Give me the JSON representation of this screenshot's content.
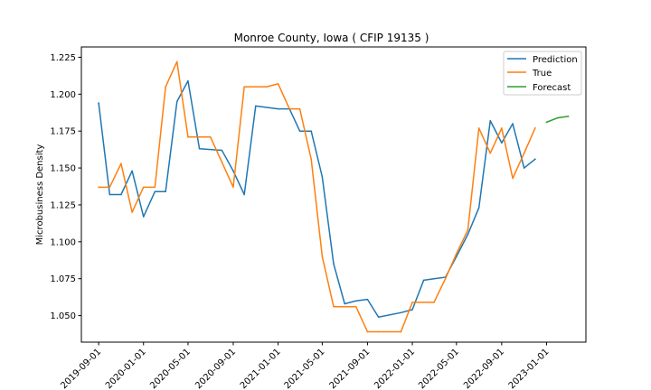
{
  "chart_data": {
    "type": "line",
    "title": "Monroe County, Iowa ( CFIP 19135 )",
    "xlabel": "",
    "ylabel": "Microbusiness Density",
    "xlim": [
      "2019-07-16",
      "2023-04-18"
    ],
    "ylim": [
      1.032,
      1.232
    ],
    "yticks": [
      1.05,
      1.075,
      1.1,
      1.125,
      1.15,
      1.175,
      1.2,
      1.225
    ],
    "ytick_labels": [
      "1.050",
      "1.075",
      "1.100",
      "1.125",
      "1.150",
      "1.175",
      "1.200",
      "1.225"
    ],
    "xticks": [
      "2019-09-01",
      "2020-01-01",
      "2020-05-01",
      "2020-09-01",
      "2021-01-01",
      "2021-05-01",
      "2021-09-01",
      "2022-01-01",
      "2022-05-01",
      "2022-09-01",
      "2023-01-01"
    ],
    "xtick_labels": [
      "2019-09-01",
      "2020-01-01",
      "2020-05-01",
      "2020-09-01",
      "2021-01-01",
      "2021-05-01",
      "2021-09-01",
      "2022-01-01",
      "2022-05-01",
      "2022-09-01",
      "2023-01-01"
    ],
    "grid": false,
    "legend_position": "top-right",
    "series": [
      {
        "name": "Prediction",
        "color": "#1f77b4",
        "x": [
          "2019-09-01",
          "2019-10-01",
          "2019-11-01",
          "2019-12-01",
          "2020-01-01",
          "2020-02-01",
          "2020-03-01",
          "2020-04-01",
          "2020-05-01",
          "2020-06-01",
          "2020-08-01",
          "2020-09-01",
          "2020-10-01",
          "2020-11-01",
          "2021-01-01",
          "2021-02-01",
          "2021-03-01",
          "2021-04-01",
          "2021-05-01",
          "2021-06-01",
          "2021-07-01",
          "2021-08-01",
          "2021-09-01",
          "2021-10-01",
          "2021-12-01",
          "2022-01-01",
          "2022-02-01",
          "2022-03-01",
          "2022-04-01",
          "2022-05-01",
          "2022-06-01",
          "2022-07-01",
          "2022-08-01",
          "2022-09-01",
          "2022-10-01",
          "2022-11-01",
          "2022-12-01"
        ],
        "y": [
          1.194,
          1.132,
          1.132,
          1.148,
          1.117,
          1.134,
          1.134,
          1.195,
          1.209,
          1.163,
          1.162,
          1.148,
          1.132,
          1.192,
          1.19,
          1.19,
          1.175,
          1.175,
          1.144,
          1.085,
          1.058,
          1.06,
          1.061,
          1.049,
          1.052,
          1.054,
          1.074,
          1.075,
          1.076,
          1.09,
          1.105,
          1.123,
          1.182,
          1.167,
          1.18,
          1.15,
          1.156
        ]
      },
      {
        "name": "True",
        "color": "#ff7f0e",
        "x": [
          "2019-09-01",
          "2019-10-01",
          "2019-11-01",
          "2019-12-01",
          "2020-01-01",
          "2020-02-01",
          "2020-03-01",
          "2020-04-01",
          "2020-05-01",
          "2020-06-01",
          "2020-07-01",
          "2020-08-01",
          "2020-09-01",
          "2020-10-01",
          "2020-11-01",
          "2020-12-01",
          "2021-01-01",
          "2021-02-01",
          "2021-03-01",
          "2021-04-01",
          "2021-05-01",
          "2021-06-01",
          "2021-07-01",
          "2021-08-01",
          "2021-09-01",
          "2021-10-01",
          "2021-11-01",
          "2021-12-01",
          "2022-01-01",
          "2022-02-01",
          "2022-03-01",
          "2022-04-01",
          "2022-05-01",
          "2022-06-01",
          "2022-07-01",
          "2022-08-01",
          "2022-09-01",
          "2022-10-01",
          "2022-11-01",
          "2022-12-01"
        ],
        "y": [
          1.137,
          1.137,
          1.153,
          1.12,
          1.137,
          1.137,
          1.205,
          1.222,
          1.171,
          1.171,
          1.171,
          1.154,
          1.137,
          1.205,
          1.205,
          1.205,
          1.207,
          1.19,
          1.19,
          1.156,
          1.09,
          1.056,
          1.056,
          1.056,
          1.039,
          1.039,
          1.039,
          1.039,
          1.059,
          1.059,
          1.059,
          1.075,
          1.092,
          1.108,
          1.177,
          1.16,
          1.177,
          1.143,
          1.16,
          1.177
        ]
      },
      {
        "name": "Forecast",
        "color": "#2ca02c",
        "x": [
          "2023-01-01",
          "2023-02-01",
          "2023-03-01"
        ],
        "y": [
          1.181,
          1.184,
          1.185
        ]
      }
    ]
  }
}
